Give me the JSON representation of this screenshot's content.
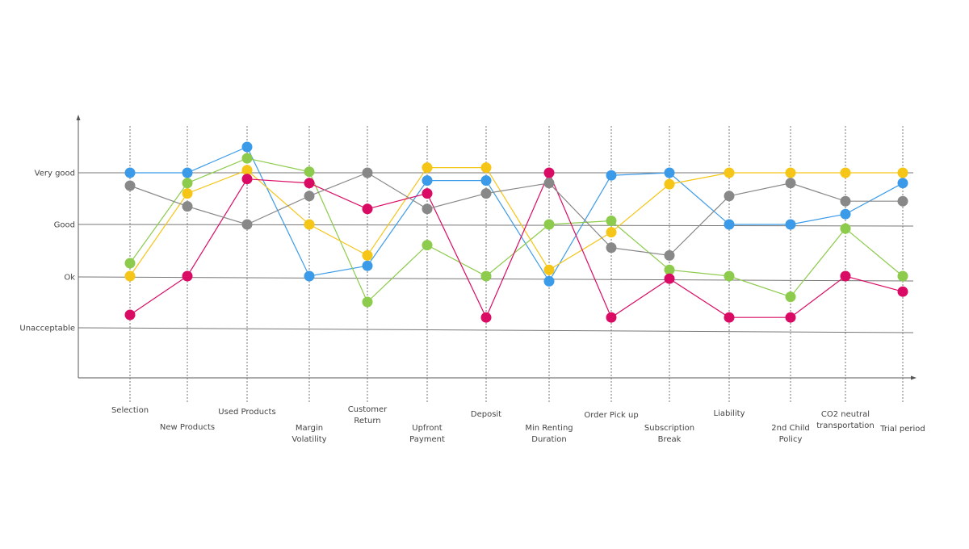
{
  "chart_data": {
    "type": "line",
    "y_levels": [
      "Unacceptable",
      "Ok",
      "Good",
      "Very good"
    ],
    "categories": [
      "Selection",
      "New Products",
      "Used Products",
      "Margin Volatility",
      "Customer Return",
      "Upfront Payment",
      "Deposit",
      "Min Renting Duration",
      "Order Pick up",
      "Subscription Break",
      "Liability",
      "2nd Child Policy",
      "CO2 neutral transportation",
      "Trial period"
    ],
    "ylim": [
      0,
      3.5
    ],
    "grid": "horizontal lines at levels, dashed vertical guides at categories",
    "series": [
      {
        "color": "#3B9BE8",
        "values": [
          3.0,
          3.0,
          3.5,
          1.0,
          1.2,
          2.85,
          2.85,
          0.9,
          2.95,
          3.0,
          2.0,
          2.0,
          2.2,
          2.8
        ]
      },
      {
        "color": "#8CCB4B",
        "values": [
          1.25,
          2.8,
          3.28,
          3.02,
          0.5,
          1.6,
          1.0,
          2.0,
          2.07,
          1.12,
          1.0,
          0.6,
          1.92,
          1.0
        ]
      },
      {
        "color": "#F5C518",
        "values": [
          1.0,
          2.6,
          3.05,
          2.0,
          1.4,
          3.1,
          3.1,
          1.12,
          1.85,
          2.78,
          3.0,
          3.0,
          3.0,
          3.0
        ]
      },
      {
        "color": "#DA0B64",
        "values": [
          0.25,
          1.0,
          2.88,
          2.8,
          2.3,
          2.6,
          0.2,
          3.0,
          0.2,
          0.95,
          0.2,
          0.2,
          1.0,
          0.7
        ]
      },
      {
        "color": "#888888",
        "values": [
          2.75,
          2.35,
          2.0,
          2.55,
          3.0,
          2.3,
          2.6,
          2.8,
          1.55,
          1.4,
          2.55,
          2.8,
          2.45,
          2.45
        ]
      }
    ]
  }
}
